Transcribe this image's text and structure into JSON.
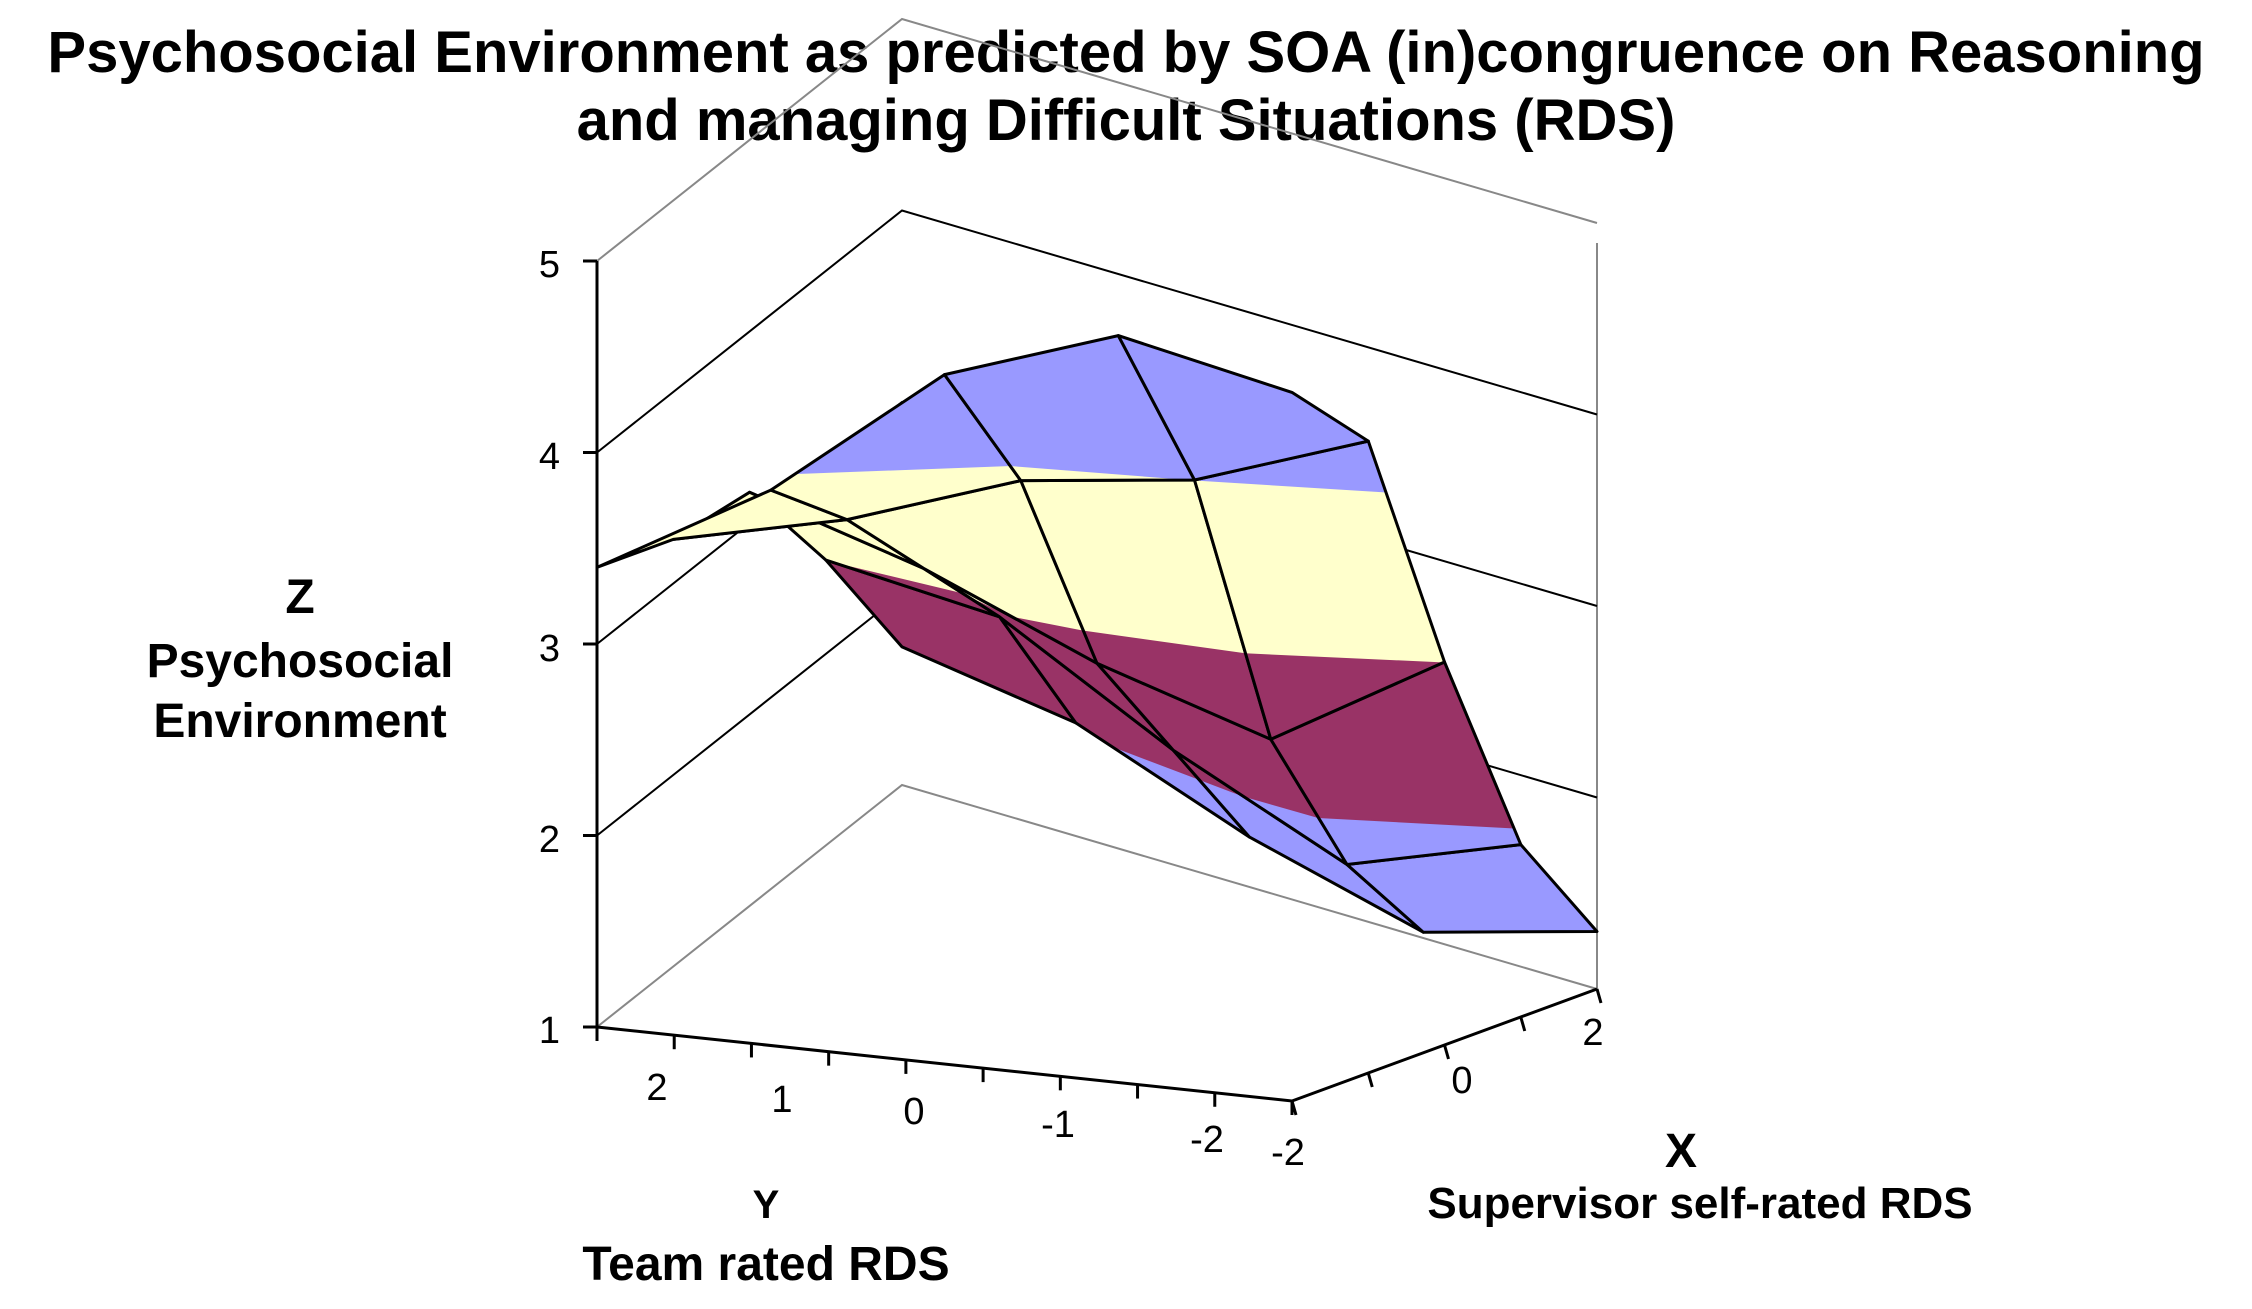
{
  "chart_data": {
    "type": "surface",
    "title": "Psychosocial Environment as predicted by SOA (in)congruence on Reasoning and managing Difficult Situations (RDS)",
    "title_lines": [
      "Psychosocial Environment as predicted by SOA (in)congruence on Reasoning",
      "and managing Difficult Situations (RDS)"
    ],
    "z_axis": {
      "letter": "Z",
      "label_lines": [
        "Psychosocial",
        "Environment"
      ],
      "range": [
        1,
        5
      ],
      "ticks": [
        "1",
        "2",
        "3",
        "4",
        "5"
      ]
    },
    "y_axis": {
      "letter": "Y",
      "label": "Team rated RDS",
      "ticks": [
        "2",
        "1",
        "0",
        "-1",
        "-2"
      ]
    },
    "x_axis": {
      "letter": "X",
      "label": "Supervisor self-rated RDS",
      "ticks": [
        "-2",
        "0",
        "2"
      ]
    },
    "x_values": [
      -2,
      -1,
      0,
      1,
      2
    ],
    "y_values": [
      2,
      1,
      0,
      -1,
      -2
    ],
    "z_values": [
      [
        3.4,
        3.4,
        3.5,
        3.0,
        2.4
      ],
      [
        3.9,
        3.6,
        3.2,
        2.8,
        2.1
      ],
      [
        4.6,
        3.9,
        2.8,
        2.2,
        1.6
      ],
      [
        4.9,
        4.0,
        2.5,
        1.7,
        1.2
      ],
      [
        4.7,
        4.3,
        3.0,
        1.9,
        1.3
      ]
    ],
    "color_bands": [
      {
        "from": 1,
        "to": 2,
        "color": "#9999ff"
      },
      {
        "from": 2,
        "to": 3,
        "color": "#993366"
      },
      {
        "from": 3,
        "to": 4,
        "color": "#ffffcc"
      },
      {
        "from": 4,
        "to": 5,
        "color": "#9999ff"
      }
    ],
    "grid": true
  }
}
